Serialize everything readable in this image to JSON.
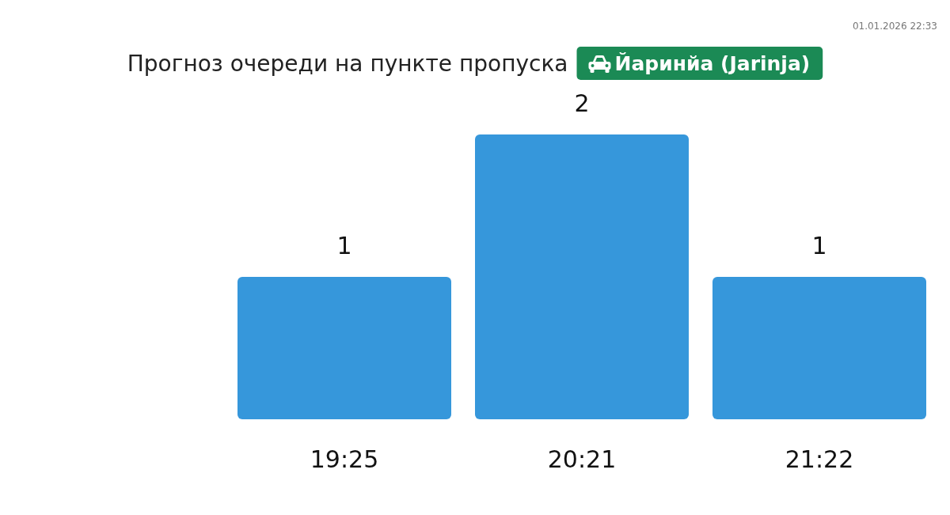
{
  "chart_data": {
    "type": "bar",
    "title": "Прогноз очереди на пункте пропуска",
    "subtitle": "Йаринйа (Jarinja)",
    "categories": [
      "19:25",
      "20:21",
      "21:22"
    ],
    "values": [
      1,
      2,
      1
    ],
    "color": "#3697db",
    "data_labels": true,
    "tick_labels": "x",
    "annotations": [
      "01.01.2026 22:33"
    ]
  }
}
